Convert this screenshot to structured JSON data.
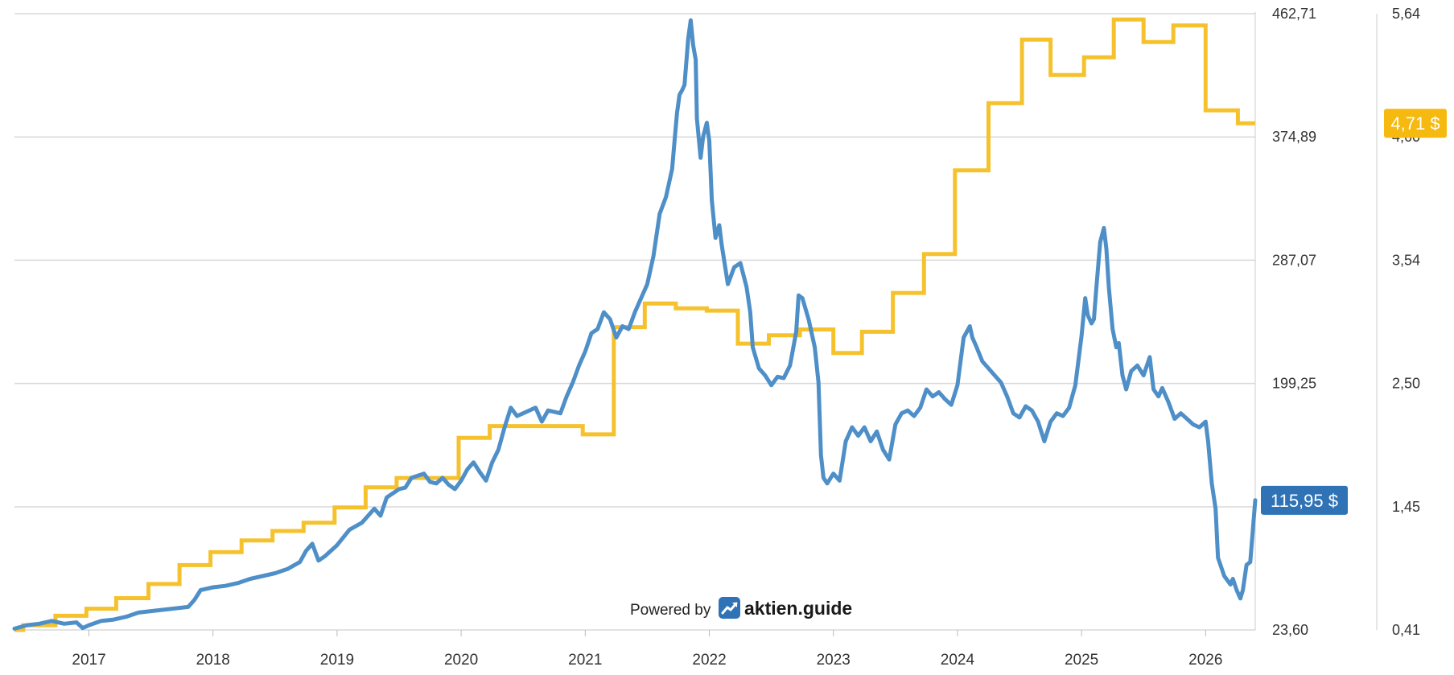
{
  "branding": {
    "powered_label": "Powered by",
    "brand_name": "aktien.guide",
    "logo_icon": "trend-chart-icon"
  },
  "colors": {
    "price": "#4f8fc8",
    "dividend": "#f5c22e",
    "price_badge": "#2f72b5",
    "dividend_badge": "#f5b90f",
    "grid": "#d9d9d9"
  },
  "chart_data": {
    "type": "line",
    "x_axis": {
      "ticks": [
        "2017",
        "2018",
        "2019",
        "2020",
        "2021",
        "2022",
        "2023",
        "2024",
        "2025",
        "2026"
      ],
      "range": [
        2016.4,
        2026.4
      ]
    },
    "y_left": {
      "ticks": [
        "462,71",
        "374,89",
        "287,07",
        "199,25",
        "115,95 $",
        "23,60"
      ],
      "range": [
        23.6,
        462.71
      ]
    },
    "y_right": {
      "ticks": [
        "5,64",
        "4,60",
        "3,54",
        "2,50",
        "1,45",
        "0,41"
      ],
      "range": [
        0.41,
        5.64
      ]
    },
    "grid": true,
    "series": [
      {
        "name": "",
        "axis": "left",
        "last_value_label": "115,95 $",
        "points": [
          [
            2016.4,
            24.5
          ],
          [
            2016.5,
            27
          ],
          [
            2016.6,
            28
          ],
          [
            2016.7,
            30
          ],
          [
            2016.8,
            28
          ],
          [
            2016.9,
            29
          ],
          [
            2016.95,
            25
          ],
          [
            2017.0,
            27
          ],
          [
            2017.1,
            30
          ],
          [
            2017.2,
            31
          ],
          [
            2017.3,
            33
          ],
          [
            2017.4,
            36
          ],
          [
            2017.5,
            37
          ],
          [
            2017.6,
            38
          ],
          [
            2017.7,
            39
          ],
          [
            2017.8,
            40
          ],
          [
            2017.85,
            45
          ],
          [
            2017.9,
            52
          ],
          [
            2018.0,
            54
          ],
          [
            2018.1,
            55
          ],
          [
            2018.2,
            57
          ],
          [
            2018.3,
            60
          ],
          [
            2018.4,
            62
          ],
          [
            2018.5,
            64
          ],
          [
            2018.6,
            67
          ],
          [
            2018.7,
            72
          ],
          [
            2018.75,
            80
          ],
          [
            2018.8,
            85
          ],
          [
            2018.85,
            73
          ],
          [
            2018.9,
            76
          ],
          [
            2019.0,
            84
          ],
          [
            2019.1,
            95
          ],
          [
            2019.2,
            100
          ],
          [
            2019.3,
            110
          ],
          [
            2019.35,
            105
          ],
          [
            2019.4,
            118
          ],
          [
            2019.5,
            124
          ],
          [
            2019.55,
            125
          ],
          [
            2019.6,
            132
          ],
          [
            2019.7,
            135
          ],
          [
            2019.75,
            129
          ],
          [
            2019.8,
            128
          ],
          [
            2019.85,
            132
          ],
          [
            2019.9,
            127
          ],
          [
            2019.95,
            124
          ],
          [
            2020.0,
            130
          ],
          [
            2020.05,
            138
          ],
          [
            2020.1,
            143
          ],
          [
            2020.15,
            136
          ],
          [
            2020.2,
            130
          ],
          [
            2020.25,
            143
          ],
          [
            2020.3,
            152
          ],
          [
            2020.35,
            168
          ],
          [
            2020.4,
            182
          ],
          [
            2020.45,
            176
          ],
          [
            2020.5,
            178
          ],
          [
            2020.6,
            182
          ],
          [
            2020.65,
            172
          ],
          [
            2020.7,
            180
          ],
          [
            2020.8,
            178
          ],
          [
            2020.85,
            190
          ],
          [
            2020.9,
            200
          ],
          [
            2020.95,
            212
          ],
          [
            2021.0,
            222
          ],
          [
            2021.05,
            235
          ],
          [
            2021.1,
            238
          ],
          [
            2021.15,
            250
          ],
          [
            2021.2,
            245
          ],
          [
            2021.25,
            232
          ],
          [
            2021.3,
            240
          ],
          [
            2021.35,
            238
          ],
          [
            2021.4,
            250
          ],
          [
            2021.45,
            260
          ],
          [
            2021.5,
            270
          ],
          [
            2021.55,
            290
          ],
          [
            2021.6,
            320
          ],
          [
            2021.65,
            332
          ],
          [
            2021.7,
            352
          ],
          [
            2021.72,
            372
          ],
          [
            2021.74,
            392
          ],
          [
            2021.76,
            405
          ],
          [
            2021.78,
            408
          ],
          [
            2021.8,
            412
          ],
          [
            2021.83,
            445
          ],
          [
            2021.85,
            458
          ],
          [
            2021.87,
            440
          ],
          [
            2021.89,
            430
          ],
          [
            2021.9,
            388
          ],
          [
            2021.93,
            360
          ],
          [
            2021.95,
            375
          ],
          [
            2021.98,
            385
          ],
          [
            2022.0,
            372
          ],
          [
            2022.02,
            330
          ],
          [
            2022.05,
            303
          ],
          [
            2022.08,
            312
          ],
          [
            2022.1,
            298
          ],
          [
            2022.15,
            270
          ],
          [
            2022.2,
            282
          ],
          [
            2022.25,
            285
          ],
          [
            2022.3,
            268
          ],
          [
            2022.33,
            250
          ],
          [
            2022.35,
            225
          ],
          [
            2022.4,
            210
          ],
          [
            2022.45,
            205
          ],
          [
            2022.5,
            198
          ],
          [
            2022.55,
            204
          ],
          [
            2022.6,
            203
          ],
          [
            2022.65,
            212
          ],
          [
            2022.7,
            236
          ],
          [
            2022.72,
            262
          ],
          [
            2022.75,
            260
          ],
          [
            2022.8,
            245
          ],
          [
            2022.85,
            225
          ],
          [
            2022.88,
            200
          ],
          [
            2022.9,
            148
          ],
          [
            2022.92,
            132
          ],
          [
            2022.95,
            128
          ],
          [
            2023.0,
            135
          ],
          [
            2023.05,
            130
          ],
          [
            2023.1,
            158
          ],
          [
            2023.15,
            168
          ],
          [
            2023.2,
            162
          ],
          [
            2023.25,
            168
          ],
          [
            2023.3,
            158
          ],
          [
            2023.35,
            165
          ],
          [
            2023.4,
            152
          ],
          [
            2023.45,
            145
          ],
          [
            2023.5,
            170
          ],
          [
            2023.55,
            178
          ],
          [
            2023.6,
            180
          ],
          [
            2023.65,
            176
          ],
          [
            2023.7,
            182
          ],
          [
            2023.75,
            195
          ],
          [
            2023.8,
            190
          ],
          [
            2023.85,
            193
          ],
          [
            2023.9,
            188
          ],
          [
            2023.95,
            184
          ],
          [
            2024.0,
            198
          ],
          [
            2024.05,
            232
          ],
          [
            2024.1,
            240
          ],
          [
            2024.12,
            232
          ],
          [
            2024.15,
            226
          ],
          [
            2024.2,
            215
          ],
          [
            2024.3,
            205
          ],
          [
            2024.35,
            200
          ],
          [
            2024.4,
            190
          ],
          [
            2024.45,
            178
          ],
          [
            2024.5,
            175
          ],
          [
            2024.55,
            183
          ],
          [
            2024.6,
            180
          ],
          [
            2024.65,
            172
          ],
          [
            2024.7,
            158
          ],
          [
            2024.75,
            172
          ],
          [
            2024.8,
            178
          ],
          [
            2024.85,
            176
          ],
          [
            2024.9,
            182
          ],
          [
            2024.95,
            198
          ],
          [
            2025.0,
            233
          ],
          [
            2025.03,
            260
          ],
          [
            2025.05,
            248
          ],
          [
            2025.08,
            242
          ],
          [
            2025.1,
            245
          ],
          [
            2025.12,
            268
          ],
          [
            2025.15,
            300
          ],
          [
            2025.18,
            310
          ],
          [
            2025.2,
            295
          ],
          [
            2025.22,
            268
          ],
          [
            2025.25,
            238
          ],
          [
            2025.28,
            225
          ],
          [
            2025.3,
            228
          ],
          [
            2025.33,
            205
          ],
          [
            2025.36,
            195
          ],
          [
            2025.4,
            208
          ],
          [
            2025.45,
            212
          ],
          [
            2025.5,
            205
          ],
          [
            2025.55,
            218
          ],
          [
            2025.58,
            195
          ],
          [
            2025.62,
            190
          ],
          [
            2025.65,
            196
          ],
          [
            2025.7,
            186
          ],
          [
            2025.75,
            174
          ],
          [
            2025.8,
            178
          ],
          [
            2025.85,
            174
          ],
          [
            2025.9,
            170
          ],
          [
            2025.95,
            168
          ],
          [
            2026.0,
            172
          ],
          [
            2026.02,
            158
          ],
          [
            2026.05,
            128
          ],
          [
            2026.08,
            110
          ],
          [
            2026.1,
            75
          ],
          [
            2026.15,
            62
          ],
          [
            2026.2,
            56
          ],
          [
            2026.22,
            60
          ],
          [
            2026.25,
            52
          ],
          [
            2026.28,
            46
          ],
          [
            2026.3,
            52
          ],
          [
            2026.33,
            70
          ],
          [
            2026.36,
            72
          ],
          [
            2026.4,
            116
          ]
        ]
      },
      {
        "name": "",
        "axis": "right",
        "last_value_label": "4,71 $",
        "points": [
          [
            2016.4,
            0.41
          ],
          [
            2016.47,
            0.41
          ],
          [
            2016.47,
            0.45
          ],
          [
            2016.73,
            0.45
          ],
          [
            2016.73,
            0.53
          ],
          [
            2016.98,
            0.53
          ],
          [
            2016.98,
            0.59
          ],
          [
            2017.22,
            0.59
          ],
          [
            2017.22,
            0.68
          ],
          [
            2017.48,
            0.68
          ],
          [
            2017.48,
            0.8
          ],
          [
            2017.73,
            0.8
          ],
          [
            2017.73,
            0.96
          ],
          [
            2017.98,
            0.96
          ],
          [
            2017.98,
            1.07
          ],
          [
            2018.23,
            1.07
          ],
          [
            2018.23,
            1.17
          ],
          [
            2018.48,
            1.17
          ],
          [
            2018.48,
            1.25
          ],
          [
            2018.73,
            1.25
          ],
          [
            2018.73,
            1.32
          ],
          [
            2018.98,
            1.32
          ],
          [
            2018.98,
            1.45
          ],
          [
            2019.23,
            1.45
          ],
          [
            2019.23,
            1.62
          ],
          [
            2019.48,
            1.62
          ],
          [
            2019.48,
            1.7
          ],
          [
            2019.98,
            1.7
          ],
          [
            2019.98,
            2.04
          ],
          [
            2020.23,
            2.04
          ],
          [
            2020.23,
            2.14
          ],
          [
            2020.98,
            2.14
          ],
          [
            2020.98,
            2.07
          ],
          [
            2021.23,
            2.07
          ],
          [
            2021.23,
            2.98
          ],
          [
            2021.48,
            2.98
          ],
          [
            2021.48,
            3.18
          ],
          [
            2021.73,
            3.18
          ],
          [
            2021.73,
            3.14
          ],
          [
            2021.98,
            3.14
          ],
          [
            2021.98,
            3.12
          ],
          [
            2022.23,
            3.12
          ],
          [
            2022.23,
            2.84
          ],
          [
            2022.48,
            2.84
          ],
          [
            2022.48,
            2.91
          ],
          [
            2022.73,
            2.91
          ],
          [
            2022.73,
            2.96
          ],
          [
            2023.0,
            2.96
          ],
          [
            2023.0,
            2.76
          ],
          [
            2023.23,
            2.76
          ],
          [
            2023.23,
            2.94
          ],
          [
            2023.48,
            2.94
          ],
          [
            2023.48,
            3.27
          ],
          [
            2023.73,
            3.27
          ],
          [
            2023.73,
            3.6
          ],
          [
            2023.98,
            3.6
          ],
          [
            2023.98,
            4.31
          ],
          [
            2024.25,
            4.31
          ],
          [
            2024.25,
            4.88
          ],
          [
            2024.52,
            4.88
          ],
          [
            2024.52,
            5.42
          ],
          [
            2024.75,
            5.42
          ],
          [
            2024.75,
            5.12
          ],
          [
            2025.02,
            5.12
          ],
          [
            2025.02,
            5.27
          ],
          [
            2025.26,
            5.27
          ],
          [
            2025.26,
            5.59
          ],
          [
            2025.5,
            5.59
          ],
          [
            2025.5,
            5.4
          ],
          [
            2025.74,
            5.4
          ],
          [
            2025.74,
            5.54
          ],
          [
            2026.0,
            5.54
          ],
          [
            2026.0,
            4.82
          ],
          [
            2026.26,
            4.82
          ],
          [
            2026.26,
            4.71
          ],
          [
            2026.4,
            4.71
          ]
        ]
      }
    ]
  }
}
